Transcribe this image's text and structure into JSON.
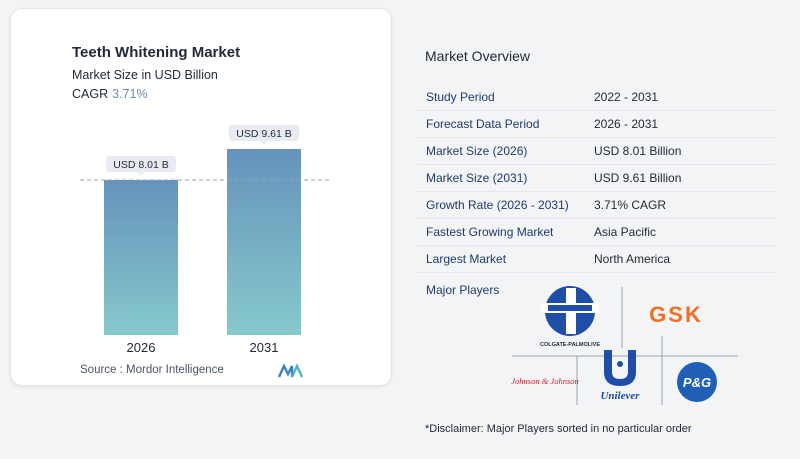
{
  "chart_data": {
    "type": "bar",
    "title": "Teeth Whitening Market",
    "subtitle": "Market Size in USD Billion",
    "cagr_label": "CAGR",
    "cagr_value": "3.71%",
    "categories": [
      "2026",
      "2031"
    ],
    "values": [
      8.01,
      9.61
    ],
    "value_labels": [
      "USD 8.01 B",
      "USD 9.61 B"
    ],
    "ylim": [
      0,
      9.61
    ],
    "colors": {
      "bar_top": "#6593bb",
      "bar_bottom": "#86c9cc",
      "reference_line": "#8fa3b5"
    }
  },
  "source": "Source : Mordor Intelligence",
  "overview": {
    "title": "Market Overview",
    "rows": [
      {
        "label": "Study Period",
        "value": "2022 - 2031"
      },
      {
        "label": "Forecast Data Period",
        "value": "2026 - 2031"
      },
      {
        "label": "Market Size (2026)",
        "value": "USD 8.01 Billion"
      },
      {
        "label": "Market Size (2031)",
        "value": "USD 9.61 Billion"
      },
      {
        "label": "Growth Rate (2026 - 2031)",
        "value": "3.71% CAGR"
      },
      {
        "label": "Fastest Growing Market",
        "value": "Asia Pacific"
      },
      {
        "label": "Largest Market",
        "value": "North America"
      }
    ],
    "players_label": "Major Players",
    "players": [
      {
        "name": "COLGATE-PALMOLIVE",
        "icon": "colgate-logo"
      },
      {
        "name": "GSK",
        "icon": "gsk-logo"
      },
      {
        "name": "Johnson & Johnson",
        "icon": "jnj-logo"
      },
      {
        "name": "Unilever",
        "icon": "unilever-logo"
      },
      {
        "name": "P&G",
        "icon": "pg-logo"
      }
    ]
  },
  "disclaimer": "*Disclaimer: Major Players sorted in no particular order"
}
